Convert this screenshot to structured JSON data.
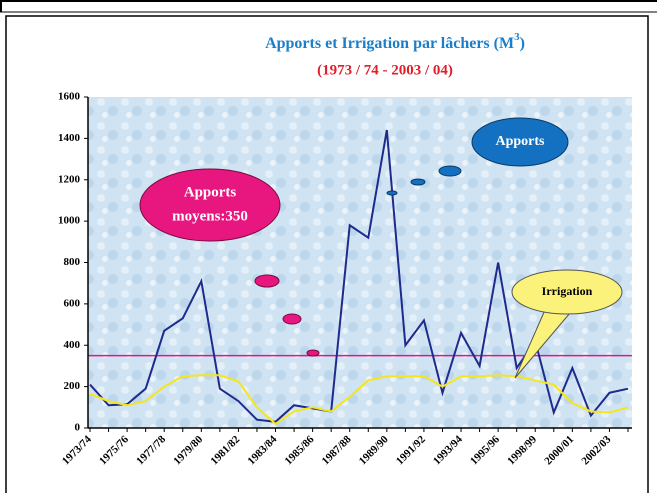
{
  "chart_data": {
    "type": "line",
    "title": {
      "text": "Apports et Irrigation par lâchers (M",
      "sup": "3",
      "end": ")"
    },
    "subtitle": "(1973 / 74 - 2003 / 04)",
    "categories": [
      "1973/74",
      null,
      "1975/76",
      null,
      "1977/78",
      null,
      "1979/80",
      null,
      "1981/82",
      null,
      "1983/84",
      null,
      "1985/86",
      null,
      "1987/88",
      null,
      "1989/90",
      null,
      "1991/92",
      null,
      "1993/94",
      null,
      "1995/96",
      null,
      "1998/99",
      null,
      "2000/01",
      null,
      "2002/03",
      null
    ],
    "series": [
      {
        "name": "Apports",
        "color": "#1f2a8c",
        "values": [
          210,
          110,
          115,
          190,
          470,
          530,
          710,
          190,
          130,
          40,
          30,
          110,
          95,
          80,
          980,
          920,
          1440,
          400,
          520,
          170,
          460,
          300,
          800,
          290,
          420,
          75,
          290,
          60,
          170,
          190
        ]
      },
      {
        "name": "Irrigation",
        "color": "#f5e61c",
        "values": [
          165,
          130,
          110,
          130,
          200,
          250,
          255,
          255,
          225,
          100,
          20,
          80,
          100,
          80,
          150,
          230,
          250,
          250,
          250,
          200,
          250,
          250,
          255,
          250,
          230,
          210,
          120,
          80,
          75,
          100
        ]
      }
    ],
    "mean_line": 350,
    "mean_color": "#e0148c",
    "annotation": [
      "Apports",
      "moyens:350"
    ],
    "ylim": [
      0,
      1600
    ],
    "yticks": [
      0,
      200,
      400,
      600,
      800,
      1000,
      1200,
      1400,
      1600
    ]
  }
}
